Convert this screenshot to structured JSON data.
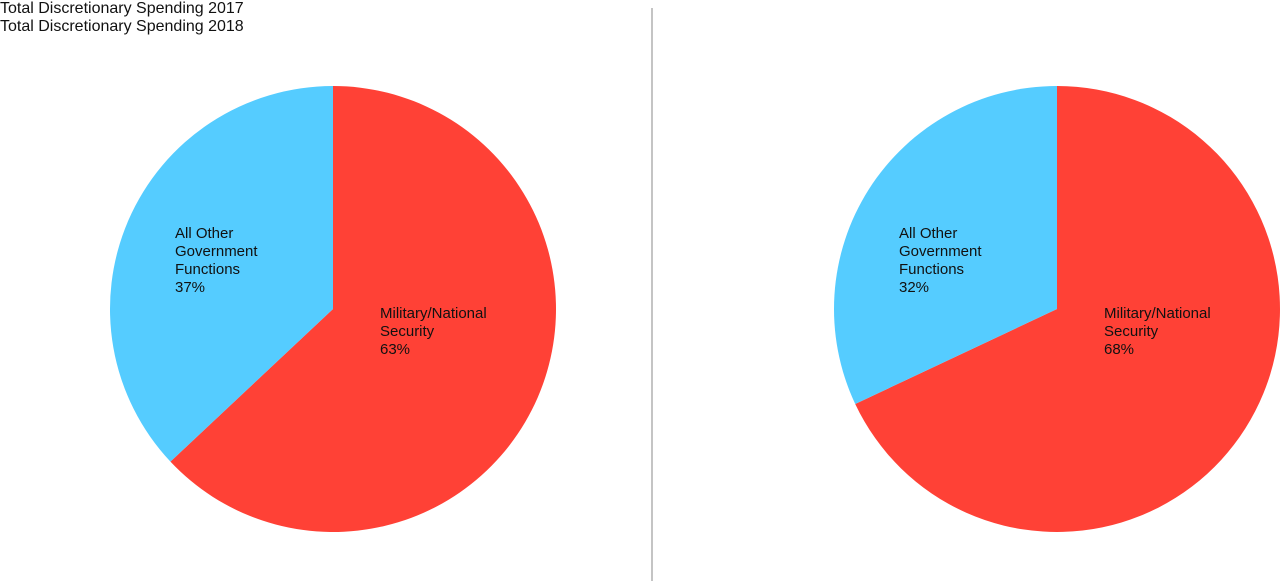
{
  "chart_data": [
    {
      "type": "pie",
      "title": "Total Discretionary Spending 2017",
      "categories": [
        "Military/National Security",
        "All Other Government Functions"
      ],
      "values": [
        63,
        37
      ],
      "value_labels": [
        "63%",
        "37%"
      ],
      "colors": [
        "#ff4136",
        "#55ccff"
      ]
    },
    {
      "type": "pie",
      "title": "Total Discretionary Spending 2018",
      "categories": [
        "Military/National Security",
        "All Other Government Functions"
      ],
      "values": [
        68,
        32
      ],
      "value_labels": [
        "68%",
        "32%"
      ],
      "colors": [
        "#ff4136",
        "#55ccff"
      ]
    }
  ]
}
